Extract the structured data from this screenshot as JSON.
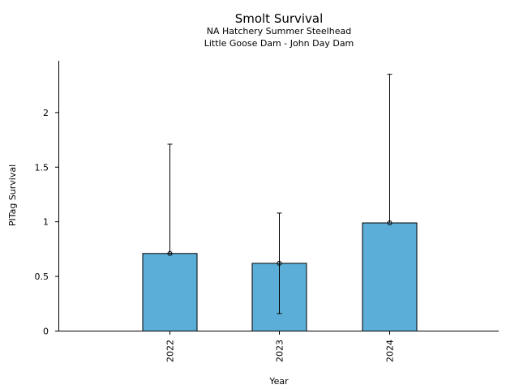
{
  "chart_data": {
    "type": "bar",
    "title": "Smolt Survival",
    "subtitle_lines": [
      "NA Hatchery Summer Steelhead",
      "Little Goose Dam - John Day Dam"
    ],
    "xlabel": "Year",
    "ylabel": "PITag Survival",
    "categories": [
      "2022",
      "2023",
      "2024"
    ],
    "values": [
      0.71,
      0.62,
      0.99
    ],
    "error_low": [
      0.71,
      0.16,
      0.99
    ],
    "error_high": [
      1.71,
      1.08,
      2.35
    ],
    "ylim": [
      0,
      2.47
    ],
    "yticks": [
      0,
      0.5,
      1,
      1.5,
      2
    ],
    "ytick_labels": [
      "0",
      "0.5",
      "1",
      "1.5",
      "2"
    ],
    "bar_color": "#5BAED8",
    "grid": false,
    "legend": false
  }
}
